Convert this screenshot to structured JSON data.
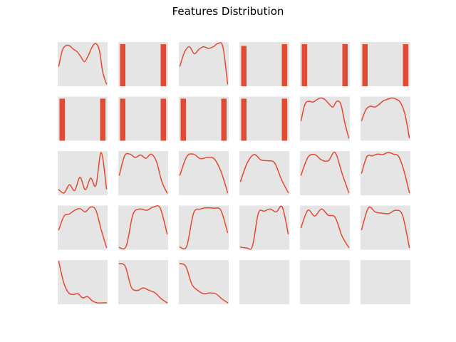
{
  "figure": {
    "title": "Features Distribution"
  },
  "style": {
    "panel_background": "#e5e5e5",
    "line_color": "#e24a33",
    "bar_color": "#e24a33"
  },
  "chart_data": [
    {
      "type": "line",
      "y": [
        0.45,
        0.84,
        0.95,
        0.94,
        0.86,
        0.8,
        0.68,
        0.56,
        0.7,
        0.9,
        1.0,
        0.85,
        0.3,
        0.02
      ]
    },
    {
      "type": "bar",
      "values": [
        1,
        0,
        1
      ]
    },
    {
      "type": "line",
      "y": [
        0.45,
        0.8,
        0.92,
        0.75,
        0.86,
        0.92,
        0.88,
        0.92,
        1.0,
        0.92,
        0.02
      ]
    },
    {
      "type": "bar",
      "values": [
        0.96,
        0,
        1
      ]
    },
    {
      "type": "bar",
      "values": [
        1,
        0,
        1
      ]
    },
    {
      "type": "bar",
      "values": [
        1,
        0,
        1
      ]
    },
    {
      "type": "bar",
      "values": [
        1,
        0,
        1
      ]
    },
    {
      "type": "bar",
      "values": [
        1,
        0,
        1
      ]
    },
    {
      "type": "bar",
      "values": [
        1,
        0,
        1
      ]
    },
    {
      "type": "bar",
      "values": [
        1,
        0,
        1
      ]
    },
    {
      "type": "line",
      "y": [
        0.45,
        0.85,
        0.92,
        0.9,
        0.96,
        1.0,
        0.96,
        0.86,
        0.78,
        0.92,
        0.85,
        0.4,
        0.03
      ]
    },
    {
      "type": "line",
      "y": [
        0.45,
        0.72,
        0.8,
        0.78,
        0.84,
        0.93,
        0.97,
        1.0,
        0.97,
        0.88,
        0.6,
        0.04
      ]
    },
    {
      "type": "line",
      "y": [
        0.1,
        0.02,
        0.22,
        0.08,
        0.4,
        0.1,
        0.38,
        0.2,
        1.0,
        0.12
      ]
    },
    {
      "type": "line",
      "y": [
        0.45,
        0.92,
        0.96,
        0.88,
        0.94,
        0.86,
        0.96,
        0.78,
        0.3,
        0.02
      ]
    },
    {
      "type": "line",
      "y": [
        0.45,
        0.9,
        0.96,
        0.85,
        0.88,
        0.85,
        0.55,
        0.03
      ]
    },
    {
      "type": "line",
      "y": [
        0.3,
        0.75,
        0.95,
        0.82,
        0.8,
        0.75,
        0.35,
        0.03
      ]
    },
    {
      "type": "line",
      "y": [
        0.45,
        0.88,
        0.95,
        0.82,
        0.8,
        1.0,
        0.5,
        0.03
      ]
    },
    {
      "type": "line",
      "y": [
        0.5,
        0.9,
        0.92,
        0.96,
        0.95,
        1.0,
        0.96,
        0.9,
        0.55,
        0.03
      ]
    },
    {
      "type": "line",
      "y": [
        0.45,
        0.78,
        0.83,
        0.92,
        0.96,
        0.88,
        1.0,
        0.92,
        0.45,
        0.02
      ]
    },
    {
      "type": "line",
      "y": [
        0.02,
        0.05,
        0.82,
        0.95,
        0.92,
        1.0,
        0.97,
        0.35
      ]
    },
    {
      "type": "line",
      "y": [
        0.03,
        0.05,
        0.85,
        0.95,
        0.98,
        0.97,
        0.92,
        0.38
      ]
    },
    {
      "type": "line",
      "y": [
        0.03,
        0.01,
        0.05,
        0.85,
        0.9,
        0.95,
        0.88,
        1.0,
        0.35
      ]
    },
    {
      "type": "line",
      "y": [
        0.5,
        0.92,
        0.78,
        0.95,
        0.8,
        0.75,
        0.3,
        0.02
      ]
    },
    {
      "type": "line",
      "y": [
        0.45,
        0.98,
        0.88,
        0.85,
        0.84,
        0.92,
        0.8,
        0.02
      ]
    },
    {
      "type": "line",
      "y": [
        1.0,
        0.5,
        0.25,
        0.2,
        0.22,
        0.12,
        0.15,
        0.05,
        0.0,
        0.0,
        0.0
      ]
    },
    {
      "type": "line",
      "y": [
        0.95,
        0.88,
        0.38,
        0.3,
        0.36,
        0.3,
        0.24,
        0.1,
        0.0
      ]
    },
    {
      "type": "line",
      "y": [
        0.95,
        0.88,
        0.45,
        0.3,
        0.22,
        0.24,
        0.22,
        0.1,
        0.0
      ]
    },
    {
      "type": "empty"
    },
    {
      "type": "empty"
    },
    {
      "type": "empty"
    }
  ]
}
